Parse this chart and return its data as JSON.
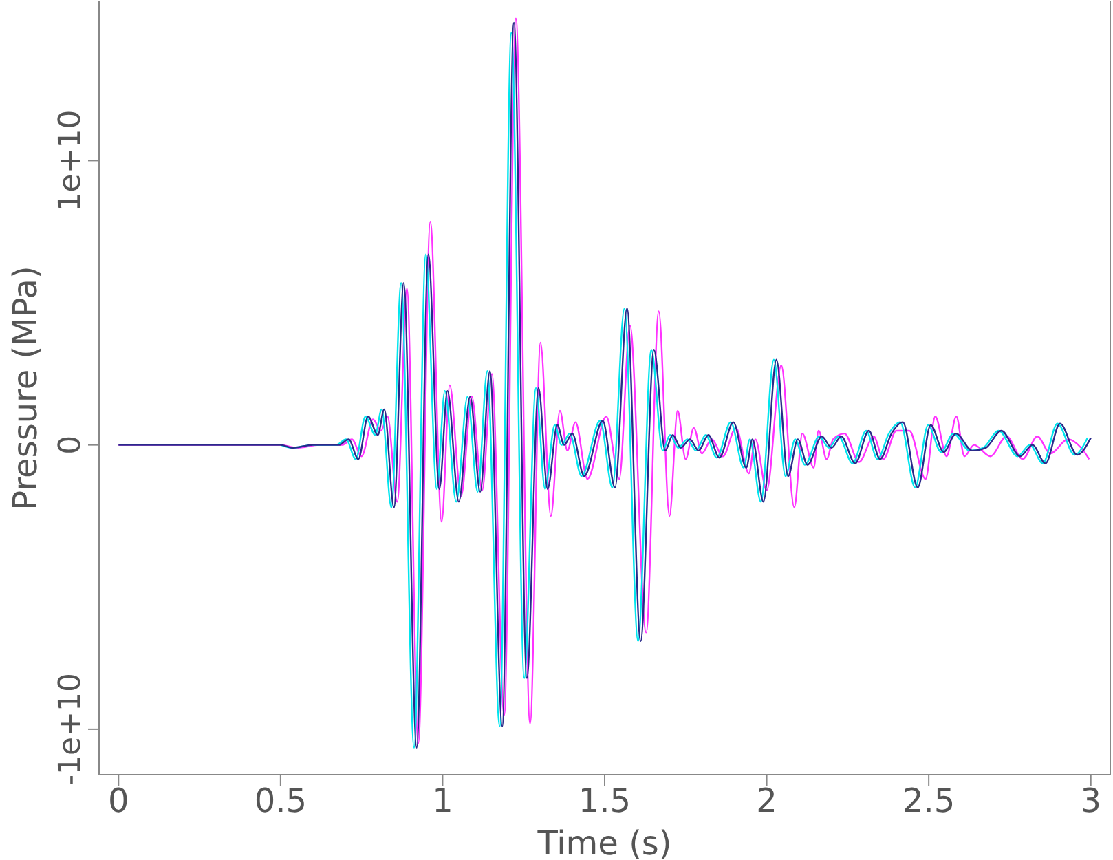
{
  "chart_data": {
    "type": "line",
    "xlabel": "Time (s)",
    "ylabel": "Pressure (MPa)",
    "xlim": [
      -0.06,
      3.06
    ],
    "ylim": [
      -11600000000,
      15600000000
    ],
    "xticks": [
      0,
      0.5,
      1,
      1.5,
      2,
      2.5,
      3
    ],
    "yticks": [
      {
        "value": -10000000000,
        "label": "-1e+10"
      },
      {
        "value": 0,
        "label": "0"
      },
      {
        "value": 10000000000,
        "label": "1e+10"
      }
    ],
    "grid": false,
    "legend": false,
    "marker": "none",
    "line_style": "solid",
    "x": [
      0,
      0.5,
      0.535,
      0.6,
      0.68,
      0.71,
      0.74,
      0.77,
      0.8,
      0.82,
      0.85,
      0.88,
      0.92,
      0.956,
      0.99,
      1.015,
      1.05,
      1.085,
      1.116,
      1.146,
      1.184,
      1.22,
      1.26,
      1.296,
      1.324,
      1.354,
      1.375,
      1.4,
      1.437,
      1.494,
      1.532,
      1.569,
      1.611,
      1.652,
      1.687,
      1.71,
      1.735,
      1.763,
      1.79,
      1.82,
      1.854,
      1.897,
      1.937,
      1.956,
      1.99,
      2.03,
      2.066,
      2.096,
      2.126,
      2.17,
      2.2,
      2.23,
      2.273,
      2.315,
      2.35,
      2.385,
      2.42,
      2.466,
      2.506,
      2.546,
      2.584,
      2.634,
      2.676,
      2.724,
      2.782,
      2.82,
      2.86,
      2.905,
      2.958,
      3.0
    ],
    "series": [
      {
        "color": "#ff33ff",
        "x": [
          0,
          0.5,
          0.55,
          0.62,
          0.69,
          0.72,
          0.75,
          0.785,
          0.81,
          0.83,
          0.86,
          0.89,
          0.925,
          0.962,
          0.997,
          1.022,
          1.057,
          1.09,
          1.122,
          1.152,
          1.19,
          1.226,
          1.27,
          1.302,
          1.334,
          1.362,
          1.385,
          1.41,
          1.447,
          1.505,
          1.545,
          1.578,
          1.628,
          1.667,
          1.7,
          1.725,
          1.75,
          1.775,
          1.8,
          1.83,
          1.865,
          1.905,
          1.945,
          1.965,
          2.0,
          2.045,
          2.085,
          2.11,
          2.145,
          2.16,
          2.185,
          2.205,
          2.24,
          2.285,
          2.33,
          2.36,
          2.4,
          2.44,
          2.49,
          2.52,
          2.555,
          2.585,
          2.61,
          2.64,
          2.69,
          2.74,
          2.79,
          2.835,
          2.875,
          2.93,
          2.97,
          2.995
        ],
        "values": [
          0,
          0,
          -100000000,
          0,
          0,
          200000000,
          -400000000,
          900000000,
          500000000,
          1000000000,
          -2000000000,
          5500000000,
          -10500000000,
          7850000000,
          -2700000000,
          2100000000,
          -1800000000,
          1700000000,
          -1600000000,
          2500000000,
          -9500000000,
          15000000000,
          -9800000000,
          3600000000,
          -2500000000,
          1200000000,
          -200000000,
          800000000,
          -1200000000,
          1000000000,
          -1200000000,
          4200000000,
          -6600000000,
          4700000000,
          -2500000000,
          1200000000,
          -500000000,
          600000000,
          -300000000,
          200000000,
          -400000000,
          600000000,
          -1000000000,
          200000000,
          -1600000000,
          2800000000,
          -2200000000,
          400000000,
          -800000000,
          500000000,
          -500000000,
          200000000,
          400000000,
          -600000000,
          300000000,
          -500000000,
          500000000,
          500000000,
          -1200000000,
          1000000000,
          -400000000,
          1000000000,
          -400000000,
          0,
          -400000000,
          300000000,
          -500000000,
          300000000,
          -300000000,
          200000000,
          -100000000,
          -500000000
        ]
      },
      {
        "color": "#00e5ee",
        "x": [
          0.5,
          0.535,
          0.6,
          0.672,
          0.702,
          0.732,
          0.762,
          0.792,
          0.812,
          0.842,
          0.872,
          0.912,
          0.948,
          0.982,
          1.007,
          1.042,
          1.077,
          1.108,
          1.138,
          1.176,
          1.212,
          1.252,
          1.288,
          1.316,
          1.346,
          1.367,
          1.392,
          1.429,
          1.486,
          1.524,
          1.561,
          1.603,
          1.644,
          1.679,
          1.702,
          1.727,
          1.755,
          1.782,
          1.812,
          1.846,
          1.889,
          1.929,
          1.948,
          1.982,
          2.022,
          2.058,
          2.088,
          2.118,
          2.162,
          2.192,
          2.222,
          2.265,
          2.307,
          2.342,
          2.377,
          2.412,
          2.458,
          2.498,
          2.538,
          2.576,
          2.626,
          2.668,
          2.716,
          2.774,
          2.812,
          2.852,
          2.897,
          2.95,
          2.99
        ],
        "values": [
          0,
          -100000000,
          0,
          0,
          200000000,
          -500000000,
          1000000000,
          350000000,
          1250000000,
          -2200000000,
          5700000000,
          -10650000000,
          6700000000,
          -1550000000,
          1900000000,
          -2000000000,
          1700000000,
          -1650000000,
          2600000000,
          -9900000000,
          14500000000,
          -8200000000,
          2000000000,
          -1550000000,
          700000000,
          0,
          400000000,
          -1100000000,
          850000000,
          -1500000000,
          4800000000,
          -6900000000,
          3350000000,
          -200000000,
          350000000,
          -100000000,
          200000000,
          -200000000,
          350000000,
          -450000000,
          800000000,
          -800000000,
          200000000,
          -2000000000,
          3000000000,
          -1100000000,
          200000000,
          -700000000,
          300000000,
          -100000000,
          300000000,
          -650000000,
          500000000,
          -500000000,
          400000000,
          800000000,
          -1500000000,
          700000000,
          -250000000,
          400000000,
          -200000000,
          -100000000,
          500000000,
          -400000000,
          0,
          -650000000,
          750000000,
          -350000000,
          250000000
        ]
      },
      {
        "color": "#2a2a8a",
        "values": [
          0,
          0,
          -100000000,
          0,
          0,
          200000000,
          -500000000,
          1000000000,
          350000000,
          1250000000,
          -2200000000,
          5700000000,
          -10650000000,
          6700000000,
          -1550000000,
          1900000000,
          -2000000000,
          1700000000,
          -1650000000,
          2600000000,
          -9900000000,
          14850000000,
          -8200000000,
          2000000000,
          -1550000000,
          700000000,
          0,
          400000000,
          -1100000000,
          850000000,
          -1500000000,
          4800000000,
          -6900000000,
          3350000000,
          -200000000,
          350000000,
          -100000000,
          200000000,
          -200000000,
          350000000,
          -450000000,
          800000000,
          -800000000,
          200000000,
          -2000000000,
          3000000000,
          -1100000000,
          200000000,
          -700000000,
          300000000,
          -100000000,
          300000000,
          -650000000,
          500000000,
          -500000000,
          400000000,
          800000000,
          -1500000000,
          700000000,
          -250000000,
          400000000,
          -200000000,
          -100000000,
          500000000,
          -400000000,
          0,
          -650000000,
          750000000,
          -350000000,
          250000000
        ]
      }
    ]
  }
}
